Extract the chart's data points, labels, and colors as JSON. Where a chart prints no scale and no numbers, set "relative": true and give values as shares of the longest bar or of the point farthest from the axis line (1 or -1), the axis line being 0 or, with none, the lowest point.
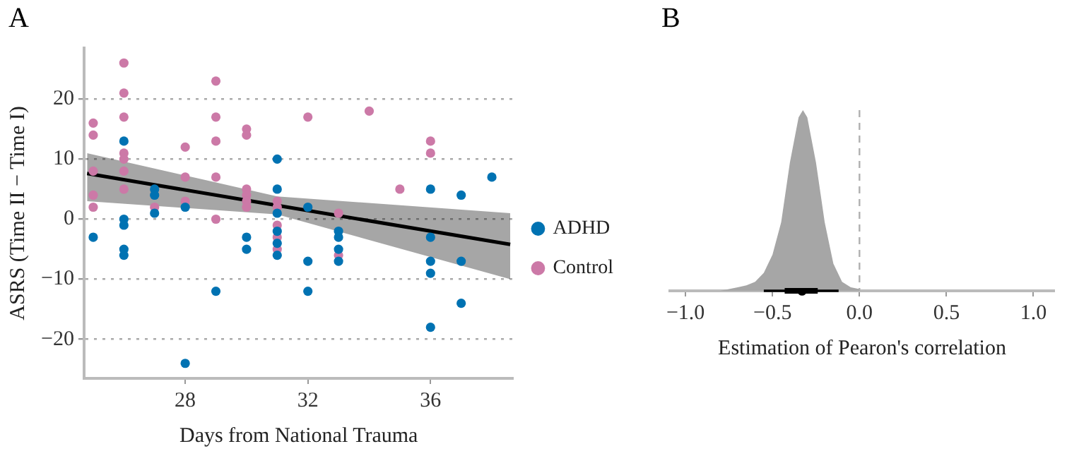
{
  "chart_data": [
    {
      "type": "scatter",
      "title": "A",
      "xlabel": "Days from National Trauma",
      "ylabel": "ASRS (Time II − Time I)",
      "xlim": [
        24.7,
        38.7
      ],
      "ylim": [
        -26.5,
        28.5
      ],
      "xticks": [
        28,
        32,
        36
      ],
      "yticks": [
        {
          "value": -20,
          "label": "−20"
        },
        {
          "value": -10,
          "label": "−10"
        },
        0,
        10,
        20
      ],
      "grid": "y",
      "legend": "right",
      "marker": "circle",
      "series": [
        {
          "name": "ADHD",
          "color": "#0072b2",
          "x": [
            25,
            26,
            26,
            26,
            26,
            26,
            27,
            27,
            27,
            28,
            28,
            29,
            30,
            30,
            31,
            31,
            31,
            31,
            31,
            31,
            32,
            32,
            32,
            33,
            33,
            33,
            33,
            36,
            36,
            36,
            36,
            36,
            37,
            37,
            37,
            38
          ],
          "values": [
            -3,
            13,
            0,
            -1,
            -5,
            -6,
            5,
            4,
            1,
            2,
            -24,
            -12,
            -3,
            -5,
            10,
            5,
            1,
            -2,
            -4,
            -6,
            2,
            -7,
            -12,
            -2,
            -3,
            -5,
            -7,
            5,
            -3,
            -7,
            -9,
            -18,
            4,
            -7,
            -14,
            7
          ]
        },
        {
          "name": "Control",
          "color": "#cc79a7",
          "x": [
            25,
            25,
            25,
            25,
            25,
            26,
            26,
            26,
            26,
            26,
            26,
            26,
            27,
            28,
            28,
            28,
            29,
            29,
            29,
            29,
            29,
            30,
            30,
            30,
            30,
            30,
            30,
            31,
            31,
            31,
            31,
            31,
            32,
            33,
            33,
            34,
            35,
            36,
            36
          ],
          "values": [
            16,
            14,
            8,
            4,
            2,
            26,
            21,
            17,
            11,
            10,
            8,
            5,
            2,
            12,
            7,
            3,
            23,
            17,
            13,
            7,
            0,
            15,
            14,
            5,
            4,
            3,
            2,
            3,
            2,
            -1,
            -3,
            -5,
            17,
            1,
            -6,
            18,
            5,
            13,
            11
          ]
        },
        {
          "type": "line",
          "color": "#000000",
          "x": [
            24.8,
            31,
            38.6
          ],
          "values": [
            7.6,
            2.3,
            -4.2
          ],
          "lower": [
            3,
            0.8,
            -10
          ],
          "upper": [
            11,
            3.8,
            1
          ],
          "marker": "none"
        }
      ]
    },
    {
      "type": "area",
      "title": "B",
      "xlabel": "Estimation of Pearon's correlation",
      "relative": true,
      "xlim": [
        -1.09,
        1.12
      ],
      "xticks": [
        {
          "value": -1,
          "label": "−1.0"
        },
        {
          "value": -0.5,
          "label": "−0.5"
        },
        {
          "value": 0,
          "label": "0.0"
        },
        {
          "value": 0.5,
          "label": "0.5"
        },
        {
          "value": 1,
          "label": "1.0"
        }
      ],
      "tick_labels": "x",
      "ref_lines": [
        {
          "axis": "x",
          "value": 0,
          "color": "#b0b0b0",
          "line_style": "dashed"
        }
      ],
      "series": [
        {
          "color": "#a6a6a6",
          "x": [
            -0.8,
            -0.75,
            -0.7,
            -0.65,
            -0.6,
            -0.55,
            -0.5,
            -0.45,
            -0.4,
            -0.35,
            -0.325,
            -0.3,
            -0.25,
            -0.2,
            -0.15,
            -0.1,
            -0.05,
            0
          ],
          "values": [
            0,
            0.01,
            0.02,
            0.03,
            0.05,
            0.1,
            0.2,
            0.38,
            0.71,
            0.96,
            1,
            0.96,
            0.71,
            0.38,
            0.15,
            0.05,
            0.02,
            0.01
          ]
        },
        {
          "type": "scatter",
          "color": "#000000",
          "x": [
            -0.33
          ],
          "values": [
            0
          ],
          "xerrors": [
            [
              -0.55,
              -0.12
            ]
          ]
        },
        {
          "type": "scatter",
          "color": "#000000",
          "x": [
            -0.33
          ],
          "values": [
            0
          ],
          "xerrors": [
            [
              -0.43,
              -0.24
            ]
          ]
        }
      ]
    }
  ]
}
